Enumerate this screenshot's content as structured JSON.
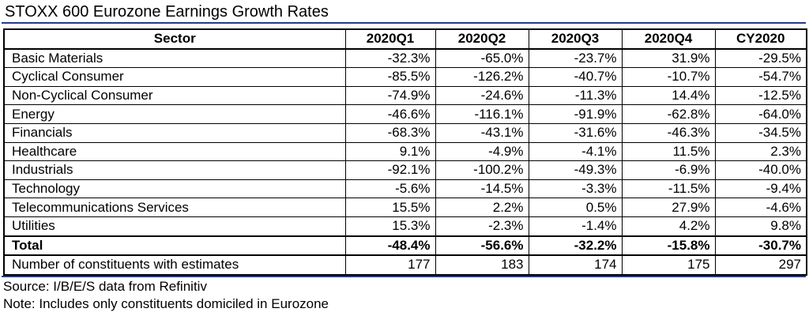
{
  "title": "STOXX 600 Eurozone Earnings Growth Rates",
  "table": {
    "headers": [
      "Sector",
      "2020Q1",
      "2020Q2",
      "2020Q3",
      "2020Q4",
      "CY2020"
    ],
    "rows": [
      [
        "Basic Materials",
        "-32.3%",
        "-65.0%",
        "-23.7%",
        "31.9%",
        "-29.5%"
      ],
      [
        "Cyclical Consumer",
        "-85.5%",
        "-126.2%",
        "-40.7%",
        "-10.7%",
        "-54.7%"
      ],
      [
        "Non-Cyclical Consumer",
        "-74.9%",
        "-24.6%",
        "-11.3%",
        "14.4%",
        "-12.5%"
      ],
      [
        "Energy",
        "-46.6%",
        "-116.1%",
        "-91.9%",
        "-62.8%",
        "-64.0%"
      ],
      [
        "Financials",
        "-68.3%",
        "-43.1%",
        "-31.6%",
        "-46.3%",
        "-34.5%"
      ],
      [
        "Healthcare",
        "9.1%",
        "-4.9%",
        "-4.1%",
        "11.5%",
        "2.3%"
      ],
      [
        "Industrials",
        "-92.1%",
        "-100.2%",
        "-49.3%",
        "-6.9%",
        "-40.0%"
      ],
      [
        "Technology",
        "-5.6%",
        "-14.5%",
        "-3.3%",
        "-11.5%",
        "-9.4%"
      ],
      [
        "Telecommunications Services",
        "15.5%",
        "2.2%",
        "0.5%",
        "27.9%",
        "-4.6%"
      ],
      [
        "Utilities",
        "15.3%",
        "-2.3%",
        "-1.4%",
        "4.2%",
        "9.8%"
      ]
    ],
    "total": [
      "Total",
      "-48.4%",
      "-56.6%",
      "-32.2%",
      "-15.8%",
      "-30.7%"
    ],
    "count": [
      "Number of constituents with estimates",
      "177",
      "183",
      "174",
      "175",
      "297"
    ]
  },
  "source": "Source: I/B/E/S data from Refinitiv",
  "note": "Note: Includes only constituents domiciled in Eurozone",
  "colors": {
    "rule": "#1f3a93"
  }
}
